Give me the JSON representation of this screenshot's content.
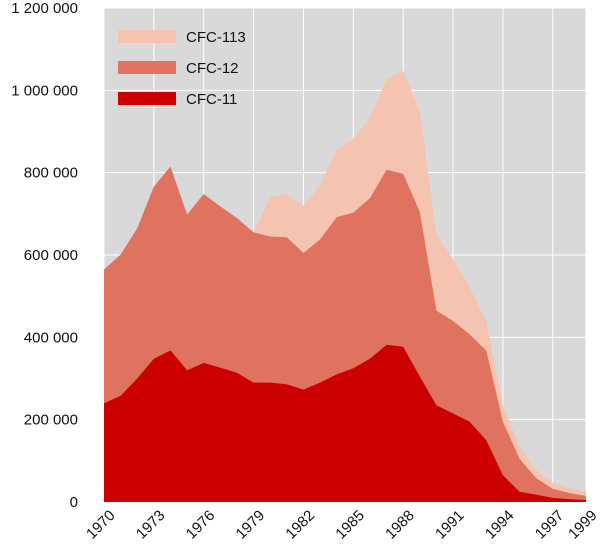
{
  "chart_data": {
    "type": "area",
    "stacked": true,
    "title": "",
    "xlabel": "",
    "ylabel": "",
    "x": [
      1970,
      1971,
      1972,
      1973,
      1974,
      1975,
      1976,
      1977,
      1978,
      1979,
      1980,
      1981,
      1982,
      1983,
      1984,
      1985,
      1986,
      1987,
      1988,
      1989,
      1990,
      1991,
      1992,
      1993,
      1994,
      1995,
      1996,
      1997,
      1998,
      1999
    ],
    "x_tick_labels": [
      "1970",
      "1973",
      "1976",
      "1979",
      "1982",
      "1985",
      "1988",
      "1991",
      "1994",
      "1997",
      "1999"
    ],
    "y_tick_labels": [
      "0",
      "200 000",
      "400 000",
      "600 000",
      "800 000",
      "1 000 000",
      "1 200 000"
    ],
    "ylim": [
      0,
      1200000
    ],
    "grid": true,
    "legend_position": "top-left",
    "series": [
      {
        "name": "CFC-11",
        "color": "#cc0000",
        "values": [
          240000,
          258000,
          300000,
          348000,
          368000,
          320000,
          338000,
          326000,
          314000,
          290000,
          290000,
          286000,
          273000,
          290000,
          310000,
          325000,
          348000,
          382000,
          377000,
          305000,
          235000,
          215000,
          195000,
          150000,
          65000,
          25000,
          18000,
          10000,
          7000,
          5000
        ]
      },
      {
        "name": "CFC-12",
        "color": "#e07360",
        "values": [
          325000,
          343000,
          365000,
          418000,
          447000,
          378000,
          410000,
          392000,
          376000,
          365000,
          355000,
          357000,
          332000,
          348000,
          382000,
          378000,
          390000,
          425000,
          420000,
          400000,
          230000,
          225000,
          212000,
          218000,
          130000,
          80000,
          40000,
          22000,
          15000,
          10000
        ]
      },
      {
        "name": "CFC-113",
        "color": "#f4c4b0",
        "values": [
          0,
          0,
          0,
          0,
          0,
          0,
          0,
          0,
          0,
          0,
          95000,
          105000,
          115000,
          130000,
          163000,
          180000,
          195000,
          220000,
          250000,
          245000,
          185000,
          150000,
          115000,
          70000,
          40000,
          30000,
          20000,
          15000,
          12000,
          10000
        ]
      }
    ]
  }
}
